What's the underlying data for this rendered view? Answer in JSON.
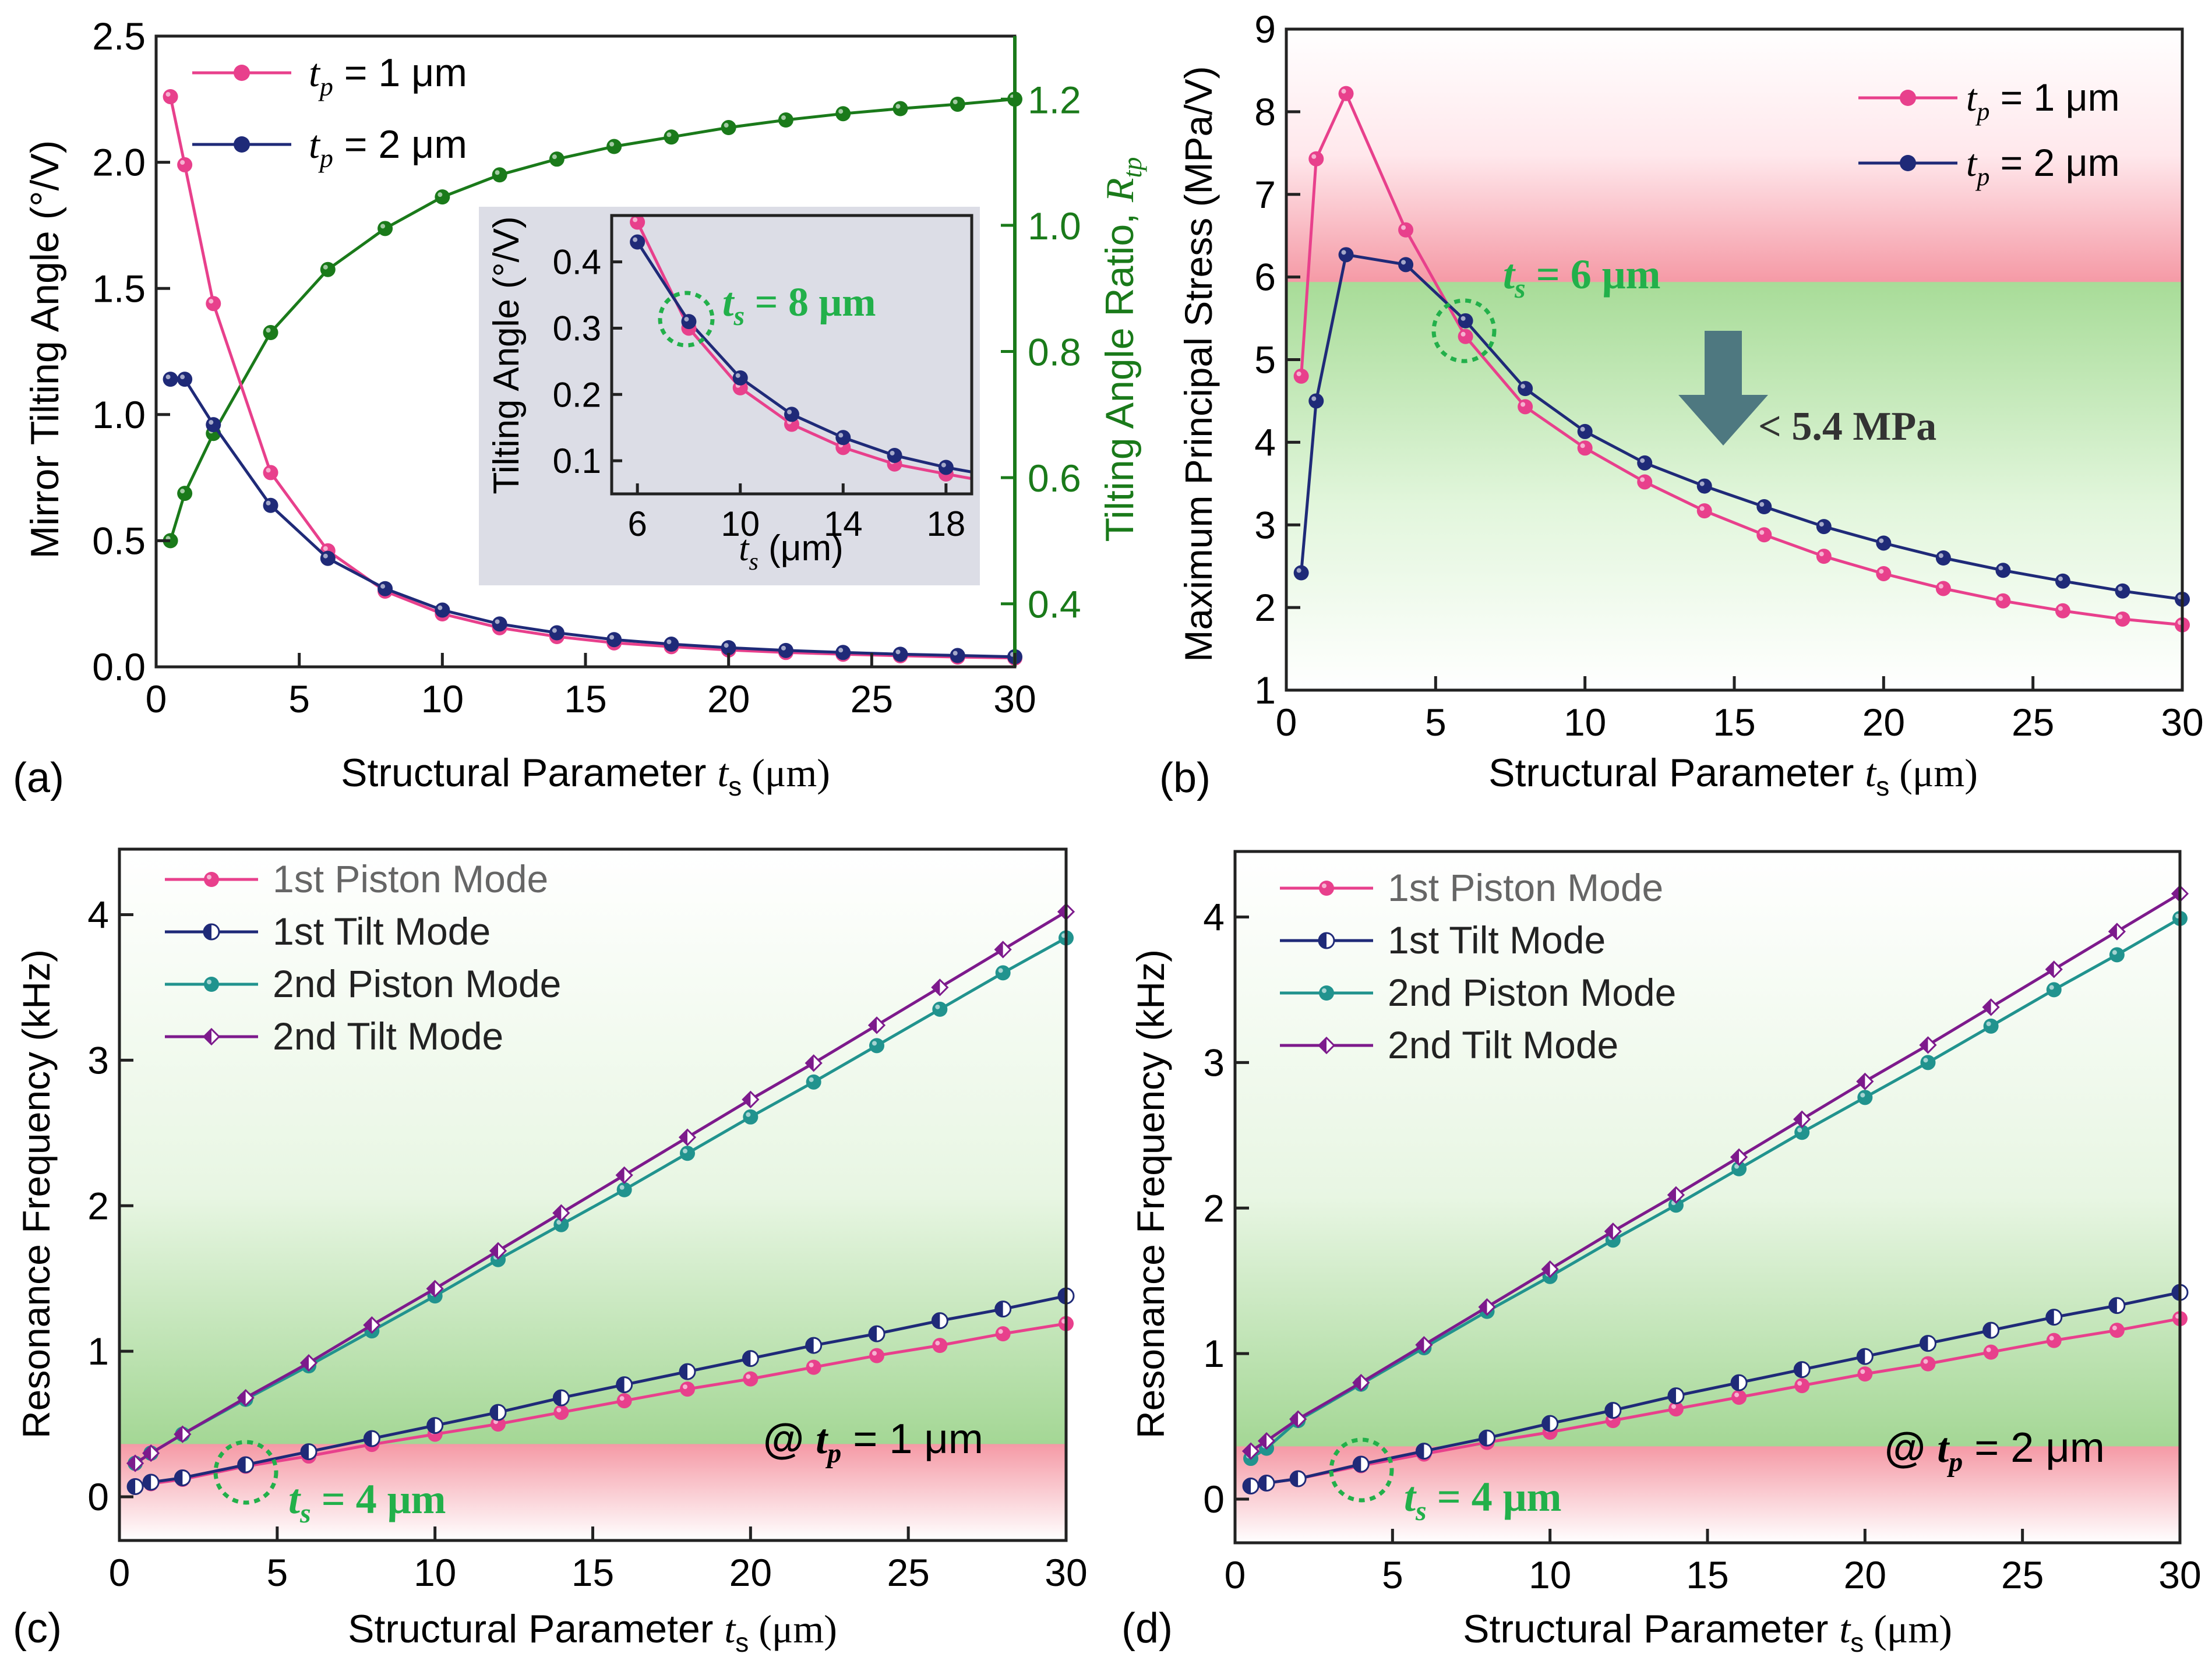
{
  "panel_labels": [
    "(a)",
    "(b)",
    "(c)",
    "(d)"
  ],
  "colors": {
    "pink": "#e8408c",
    "navy": "#1f2a78",
    "teal": "#21938e",
    "purple": "#7d1a8c",
    "green": "#1a7a1a",
    "annot_green": "#22b04a",
    "arrow": "#4e7880"
  },
  "chart_data": [
    {
      "id": "a",
      "type": "line",
      "xlabel_main": "Structural Parameter ",
      "xlabel_var": "t",
      "xlabel_sub": "s",
      "xlabel_unit": " (μm)",
      "ylabel": "Mirror Tilting Angle (°/V)",
      "y2label_main": "Tilting Angle Ratio, ",
      "y2label_var": "R",
      "y2label_sub": "tp",
      "xlim": [
        0,
        30
      ],
      "ylim": [
        0,
        2.5
      ],
      "y2lim": [
        0.3,
        1.3
      ],
      "xticks": [
        0,
        5,
        10,
        15,
        20,
        25,
        30
      ],
      "yticks": [
        "0.0",
        "0.5",
        "1.0",
        "1.5",
        "2.0",
        "2.5"
      ],
      "y2ticks": [
        "0.4",
        "0.6",
        "0.8",
        "1.0",
        "1.2"
      ],
      "x": [
        0.5,
        1,
        2,
        4,
        6,
        8,
        10,
        12,
        14,
        16,
        18,
        20,
        22,
        24,
        26,
        28,
        30
      ],
      "series": [
        {
          "name": "tp1",
          "legend_pre": "t",
          "legend_sub": "p",
          "legend_post": " = 1 μm",
          "color": "pink",
          "values": [
            2.26,
            1.99,
            1.44,
            0.77,
            0.46,
            0.3,
            0.21,
            0.155,
            0.12,
            0.095,
            0.08,
            0.067,
            0.057,
            0.05,
            0.044,
            0.039,
            0.035
          ]
        },
        {
          "name": "tp2",
          "legend_pre": "t",
          "legend_sub": "p",
          "legend_post": " = 2 μm",
          "color": "navy",
          "values": [
            1.14,
            1.14,
            0.96,
            0.64,
            0.43,
            0.31,
            0.225,
            0.17,
            0.135,
            0.108,
            0.09,
            0.076,
            0.065,
            0.057,
            0.05,
            0.045,
            0.04
          ]
        },
        {
          "name": "ratio",
          "axis": "y2",
          "color": "green",
          "values": [
            0.5,
            0.575,
            0.67,
            0.83,
            0.93,
            0.995,
            1.045,
            1.08,
            1.105,
            1.125,
            1.14,
            1.155,
            1.167,
            1.177,
            1.185,
            1.192,
            1.2
          ]
        }
      ],
      "inset": {
        "ylabel": "Tilting Angle (°/V)",
        "xlabel_var": "t",
        "xlabel_sub": "s",
        "xlabel_unit": " (μm)",
        "xlim": [
          5,
          19
        ],
        "ylim": [
          0.05,
          0.47
        ],
        "xticks": [
          6,
          10,
          14,
          18
        ],
        "yticks": [
          "0.1",
          "0.2",
          "0.3",
          "0.4"
        ],
        "x": [
          6,
          8,
          10,
          12,
          14,
          16,
          18,
          19
        ],
        "tp1": [
          0.46,
          0.3,
          0.21,
          0.155,
          0.12,
          0.095,
          0.08,
          0.073
        ],
        "tp2": [
          0.43,
          0.31,
          0.225,
          0.17,
          0.135,
          0.108,
          0.09,
          0.083
        ],
        "annotation_var": "t",
        "annotation_sub": "s",
        "annotation_text": " = 8 μm"
      }
    },
    {
      "id": "b",
      "type": "line",
      "xlabel_main": "Structural Parameter ",
      "xlabel_var": "t",
      "xlabel_sub": "s",
      "xlabel_unit": " (μm)",
      "ylabel": "Maximum Principal Stress (MPa/V)",
      "xlim": [
        0,
        30
      ],
      "ylim": [
        1,
        9
      ],
      "xticks": [
        0,
        5,
        10,
        15,
        20,
        25,
        30
      ],
      "yticks": [
        "1",
        "2",
        "3",
        "4",
        "5",
        "6",
        "7",
        "8",
        "9"
      ],
      "threshold": 5.4,
      "x": [
        0.5,
        1,
        2,
        4,
        6,
        8,
        10,
        12,
        14,
        16,
        18,
        20,
        22,
        24,
        26,
        28,
        30
      ],
      "series": [
        {
          "name": "tp1",
          "legend_pre": "t",
          "legend_sub": "p",
          "legend_post": " = 1 μm",
          "color": "pink",
          "values": [
            4.8,
            7.43,
            8.22,
            6.57,
            5.28,
            4.43,
            3.93,
            3.52,
            3.17,
            2.88,
            2.62,
            2.41,
            2.23,
            2.08,
            1.96,
            1.86,
            1.79
          ]
        },
        {
          "name": "tp2",
          "legend_pre": "t",
          "legend_sub": "p",
          "legend_post": " = 2 μm",
          "color": "navy",
          "values": [
            2.42,
            4.5,
            6.27,
            6.15,
            5.47,
            4.65,
            4.13,
            3.75,
            3.47,
            3.22,
            2.98,
            2.78,
            2.6,
            2.45,
            2.32,
            2.2,
            2.1
          ]
        }
      ],
      "annotation_var": "t",
      "annotation_sub": "s",
      "annotation_text": " = 6 μm",
      "arrow_label": "< 5.4 MPa"
    },
    {
      "id": "c",
      "type": "line",
      "xlabel_main": "Structural Parameter ",
      "xlabel_var": "t",
      "xlabel_sub": "s",
      "xlabel_unit": " (μm)",
      "ylabel": "Resonance Frequency (kHz)",
      "xlim": [
        0,
        30
      ],
      "ylim": [
        -0.3,
        4.45
      ],
      "xticks": [
        0,
        5,
        10,
        15,
        20,
        25,
        30
      ],
      "yticks": [
        "0",
        "1",
        "2",
        "3",
        "4"
      ],
      "threshold": 0.22,
      "x": [
        0.5,
        1,
        2,
        4,
        6,
        8,
        10,
        12,
        14,
        16,
        18,
        20,
        22,
        24,
        26,
        28,
        30
      ],
      "series": [
        {
          "name": "piston1",
          "legend": "1st Piston Mode",
          "color": "pink",
          "marker": "circle",
          "values": [
            0.07,
            0.09,
            0.12,
            0.21,
            0.28,
            0.36,
            0.43,
            0.5,
            0.58,
            0.66,
            0.74,
            0.81,
            0.89,
            0.97,
            1.04,
            1.12,
            1.19
          ]
        },
        {
          "name": "tilt1",
          "legend": "1st Tilt Mode",
          "color": "navy",
          "marker": "halfcircle",
          "values": [
            0.07,
            0.1,
            0.13,
            0.22,
            0.31,
            0.4,
            0.49,
            0.58,
            0.68,
            0.77,
            0.86,
            0.95,
            1.04,
            1.12,
            1.21,
            1.29,
            1.38
          ]
        },
        {
          "name": "piston2",
          "legend": "2nd Piston Mode",
          "color": "teal",
          "marker": "circle",
          "values": [
            0.23,
            0.3,
            0.43,
            0.67,
            0.9,
            1.14,
            1.38,
            1.63,
            1.87,
            2.11,
            2.36,
            2.61,
            2.85,
            3.1,
            3.35,
            3.6,
            3.84
          ]
        },
        {
          "name": "tilt2",
          "legend": "2nd Tilt Mode",
          "color": "purple",
          "marker": "diamond",
          "values": [
            0.23,
            0.3,
            0.43,
            0.68,
            0.92,
            1.18,
            1.43,
            1.69,
            1.95,
            2.21,
            2.47,
            2.73,
            2.98,
            3.24,
            3.5,
            3.76,
            4.02
          ]
        }
      ],
      "note_pre": "@ ",
      "note_var": "t",
      "note_sub": "p",
      "note_text": " = 1 μm",
      "annotation_var": "t",
      "annotation_sub": "s",
      "annotation_text": " = 4 μm"
    },
    {
      "id": "d",
      "type": "line",
      "xlabel_main": "Structural Parameter ",
      "xlabel_var": "t",
      "xlabel_sub": "s",
      "xlabel_unit": " (μm)",
      "ylabel": "Resonance Frequency (kHz)",
      "xlim": [
        0,
        30
      ],
      "ylim": [
        -0.3,
        4.45
      ],
      "xticks": [
        0,
        5,
        10,
        15,
        20,
        25,
        30
      ],
      "yticks": [
        "0",
        "1",
        "2",
        "3",
        "4"
      ],
      "threshold": 0.22,
      "x": [
        0.5,
        1,
        2,
        4,
        6,
        8,
        10,
        12,
        14,
        16,
        18,
        20,
        22,
        24,
        26,
        28,
        30
      ],
      "series": [
        {
          "name": "piston1",
          "legend": "1st Piston Mode",
          "color": "pink",
          "marker": "circle",
          "values": [
            0.09,
            0.11,
            0.14,
            0.23,
            0.31,
            0.39,
            0.46,
            0.54,
            0.62,
            0.7,
            0.78,
            0.86,
            0.93,
            1.01,
            1.09,
            1.16,
            1.24
          ]
        },
        {
          "name": "tilt1",
          "legend": "1st Tilt Mode",
          "color": "navy",
          "marker": "halfcircle",
          "values": [
            0.09,
            0.11,
            0.14,
            0.24,
            0.33,
            0.42,
            0.52,
            0.61,
            0.71,
            0.8,
            0.89,
            0.98,
            1.07,
            1.16,
            1.25,
            1.33,
            1.42
          ]
        },
        {
          "name": "piston2",
          "legend": "2nd Piston Mode",
          "color": "teal",
          "marker": "circle",
          "values": [
            0.28,
            0.35,
            0.54,
            0.79,
            1.04,
            1.29,
            1.53,
            1.78,
            2.02,
            2.27,
            2.52,
            2.76,
            3.0,
            3.25,
            3.5,
            3.74,
            3.99
          ]
        },
        {
          "name": "tilt2",
          "legend": "2nd Tilt Mode",
          "color": "purple",
          "marker": "diamond",
          "values": [
            0.33,
            0.4,
            0.55,
            0.8,
            1.06,
            1.32,
            1.58,
            1.84,
            2.09,
            2.35,
            2.61,
            2.87,
            3.12,
            3.38,
            3.64,
            3.9,
            4.16
          ]
        }
      ],
      "note_pre": "@ ",
      "note_var": "t",
      "note_sub": "p",
      "note_text": " = 2 μm",
      "annotation_var": "t",
      "annotation_sub": "s",
      "annotation_text": " = 4 μm"
    }
  ]
}
